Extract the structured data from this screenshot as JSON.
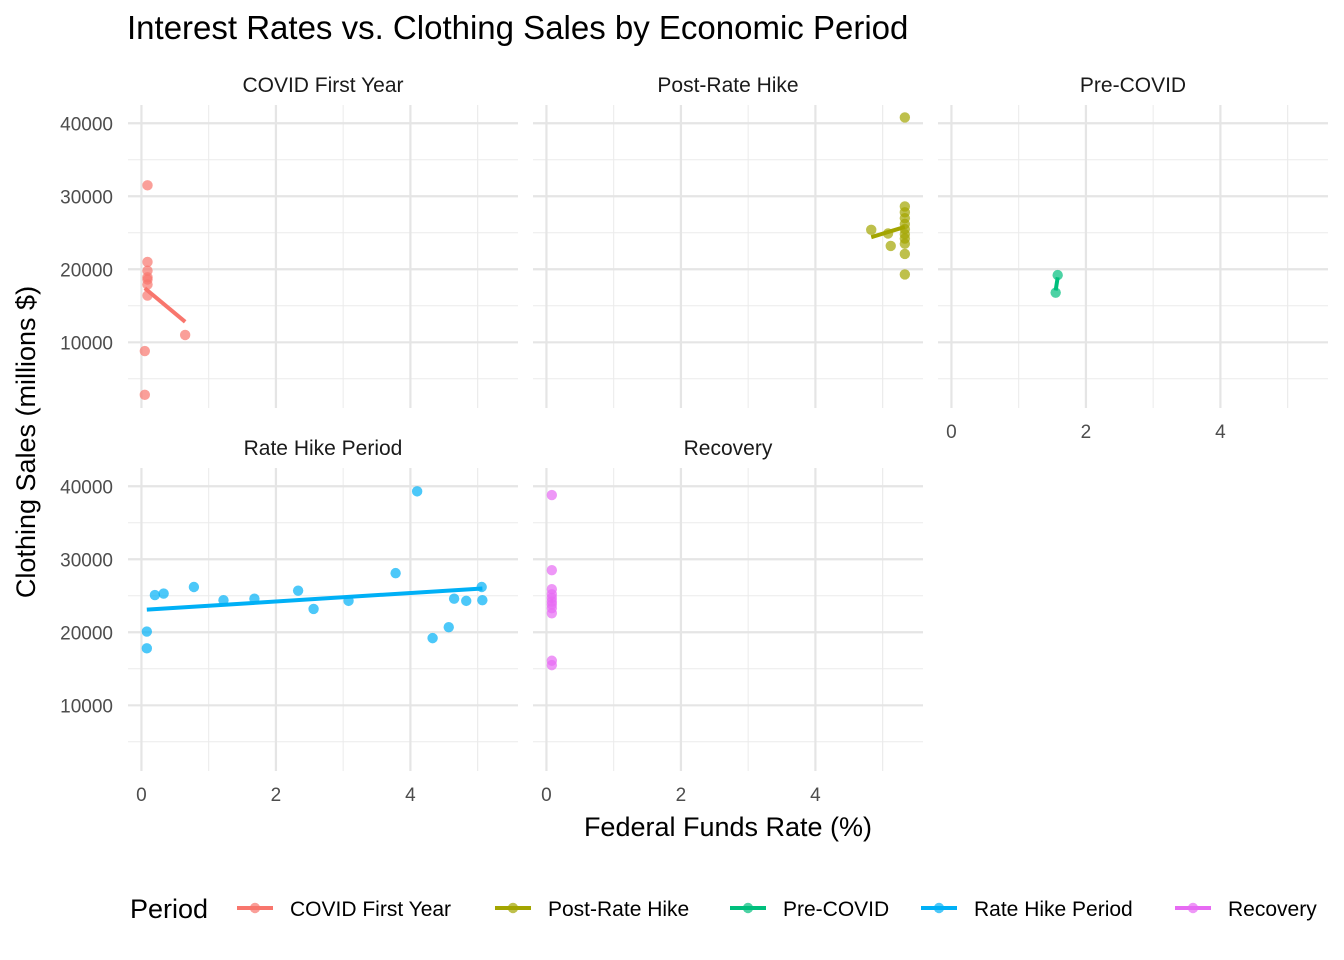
{
  "chart_data": {
    "type": "scatter",
    "title": "Interest Rates vs. Clothing Sales by Economic Period",
    "xlabel": "Federal Funds Rate (%)",
    "ylabel": "Clothing Sales (millions $)",
    "xlim": [
      -0.2,
      5.6
    ],
    "ylim": [
      1000,
      42500
    ],
    "x_ticks": [
      0,
      2,
      4
    ],
    "y_ticks": [
      10000,
      20000,
      30000,
      40000
    ],
    "grid": true,
    "legend": {
      "title": "Period",
      "position": "bottom"
    },
    "panels": [
      {
        "name": "COVID First Year",
        "color": "#F8766D",
        "points": [
          [
            0.09,
            31500
          ],
          [
            0.09,
            21000
          ],
          [
            0.09,
            19800
          ],
          [
            0.09,
            18900
          ],
          [
            0.09,
            18600
          ],
          [
            0.09,
            17900
          ],
          [
            0.09,
            16400
          ],
          [
            0.05,
            8800
          ],
          [
            0.05,
            2800
          ],
          [
            0.65,
            11000
          ]
        ],
        "fit": [
          [
            0.05,
            17400
          ],
          [
            0.65,
            12800
          ]
        ]
      },
      {
        "name": "Post-Rate Hike",
        "color": "#A3A500",
        "points": [
          [
            4.83,
            25400
          ],
          [
            5.08,
            24900
          ],
          [
            5.12,
            23200
          ],
          [
            5.33,
            40800
          ],
          [
            5.33,
            28600
          ],
          [
            5.33,
            27800
          ],
          [
            5.33,
            27000
          ],
          [
            5.33,
            26200
          ],
          [
            5.33,
            25500
          ],
          [
            5.33,
            24800
          ],
          [
            5.33,
            24200
          ],
          [
            5.33,
            23500
          ],
          [
            5.33,
            22100
          ],
          [
            5.33,
            19300
          ]
        ],
        "fit": [
          [
            4.83,
            24400
          ],
          [
            5.33,
            25800
          ]
        ]
      },
      {
        "name": "Pre-COVID",
        "color": "#00BF7D",
        "points": [
          [
            1.55,
            16800
          ],
          [
            1.58,
            19200
          ]
        ],
        "fit": [
          [
            1.55,
            17100
          ],
          [
            1.58,
            18900
          ]
        ]
      },
      {
        "name": "Rate Hike Period",
        "color": "#00B0F6",
        "points": [
          [
            0.08,
            20100
          ],
          [
            0.08,
            17800
          ],
          [
            0.2,
            25100
          ],
          [
            0.33,
            25300
          ],
          [
            0.78,
            26200
          ],
          [
            1.22,
            24400
          ],
          [
            1.68,
            24600
          ],
          [
            2.33,
            25700
          ],
          [
            2.56,
            23200
          ],
          [
            3.08,
            24300
          ],
          [
            3.78,
            28100
          ],
          [
            4.1,
            39300
          ],
          [
            4.33,
            19200
          ],
          [
            4.57,
            20700
          ],
          [
            4.65,
            24600
          ],
          [
            4.83,
            24300
          ],
          [
            5.06,
            26200
          ],
          [
            5.07,
            24400
          ]
        ],
        "fit": [
          [
            0.08,
            23100
          ],
          [
            5.07,
            26000
          ]
        ]
      },
      {
        "name": "Recovery",
        "color": "#E76BF3",
        "points": [
          [
            0.08,
            38800
          ],
          [
            0.08,
            28500
          ],
          [
            0.08,
            25900
          ],
          [
            0.08,
            25200
          ],
          [
            0.08,
            24700
          ],
          [
            0.08,
            24200
          ],
          [
            0.08,
            23800
          ],
          [
            0.08,
            23300
          ],
          [
            0.08,
            22600
          ],
          [
            0.08,
            16100
          ],
          [
            0.08,
            15500
          ]
        ],
        "fit": [
          [
            0.06,
            24300
          ],
          [
            0.1,
            24300
          ]
        ]
      }
    ]
  }
}
